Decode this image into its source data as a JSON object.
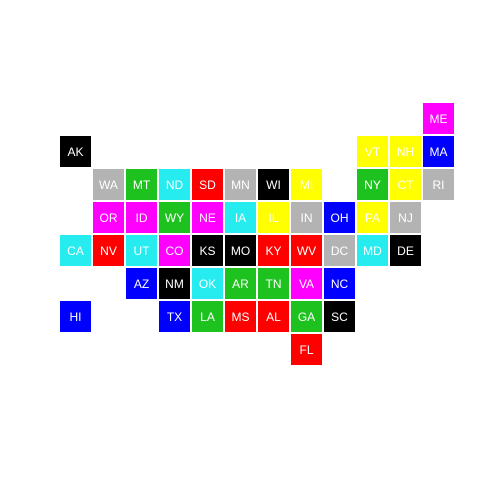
{
  "map": {
    "legend": [],
    "colors": {
      "black": "#000000",
      "gray": "#b3b3b3",
      "green": "#1ec21e",
      "cyan": "#26ecf0",
      "red": "#ff0000",
      "yellow": "#ffff00",
      "magenta": "#ff00ff",
      "blue": "#0000ff"
    },
    "states": [
      {
        "abbr": "ME",
        "row": 0,
        "col": 11,
        "color": "magenta"
      },
      {
        "abbr": "AK",
        "row": 1,
        "col": 0,
        "color": "black"
      },
      {
        "abbr": "VT",
        "row": 1,
        "col": 9,
        "color": "yellow"
      },
      {
        "abbr": "NH",
        "row": 1,
        "col": 10,
        "color": "yellow"
      },
      {
        "abbr": "MA",
        "row": 1,
        "col": 11,
        "color": "blue"
      },
      {
        "abbr": "WA",
        "row": 2,
        "col": 1,
        "color": "gray"
      },
      {
        "abbr": "MT",
        "row": 2,
        "col": 2,
        "color": "green"
      },
      {
        "abbr": "ND",
        "row": 2,
        "col": 3,
        "color": "cyan"
      },
      {
        "abbr": "SD",
        "row": 2,
        "col": 4,
        "color": "red"
      },
      {
        "abbr": "MN",
        "row": 2,
        "col": 5,
        "color": "gray"
      },
      {
        "abbr": "WI",
        "row": 2,
        "col": 6,
        "color": "black"
      },
      {
        "abbr": "MI",
        "row": 2,
        "col": 7,
        "color": "yellow"
      },
      {
        "abbr": "NY",
        "row": 2,
        "col": 9,
        "color": "green"
      },
      {
        "abbr": "CT",
        "row": 2,
        "col": 10,
        "color": "yellow"
      },
      {
        "abbr": "RI",
        "row": 2,
        "col": 11,
        "color": "gray"
      },
      {
        "abbr": "OR",
        "row": 3,
        "col": 1,
        "color": "magenta"
      },
      {
        "abbr": "ID",
        "row": 3,
        "col": 2,
        "color": "magenta"
      },
      {
        "abbr": "WY",
        "row": 3,
        "col": 3,
        "color": "green"
      },
      {
        "abbr": "NE",
        "row": 3,
        "col": 4,
        "color": "magenta"
      },
      {
        "abbr": "IA",
        "row": 3,
        "col": 5,
        "color": "cyan"
      },
      {
        "abbr": "IL",
        "row": 3,
        "col": 6,
        "color": "yellow"
      },
      {
        "abbr": "IN",
        "row": 3,
        "col": 7,
        "color": "gray"
      },
      {
        "abbr": "OH",
        "row": 3,
        "col": 8,
        "color": "blue"
      },
      {
        "abbr": "PA",
        "row": 3,
        "col": 9,
        "color": "yellow"
      },
      {
        "abbr": "NJ",
        "row": 3,
        "col": 10,
        "color": "gray"
      },
      {
        "abbr": "CA",
        "row": 4,
        "col": 0,
        "color": "cyan"
      },
      {
        "abbr": "NV",
        "row": 4,
        "col": 1,
        "color": "red"
      },
      {
        "abbr": "UT",
        "row": 4,
        "col": 2,
        "color": "cyan"
      },
      {
        "abbr": "CO",
        "row": 4,
        "col": 3,
        "color": "magenta"
      },
      {
        "abbr": "KS",
        "row": 4,
        "col": 4,
        "color": "black"
      },
      {
        "abbr": "MO",
        "row": 4,
        "col": 5,
        "color": "black"
      },
      {
        "abbr": "KY",
        "row": 4,
        "col": 6,
        "color": "red"
      },
      {
        "abbr": "WV",
        "row": 4,
        "col": 7,
        "color": "red"
      },
      {
        "abbr": "DC",
        "row": 4,
        "col": 8,
        "color": "gray"
      },
      {
        "abbr": "MD",
        "row": 4,
        "col": 9,
        "color": "cyan"
      },
      {
        "abbr": "DE",
        "row": 4,
        "col": 10,
        "color": "black"
      },
      {
        "abbr": "AZ",
        "row": 5,
        "col": 2,
        "color": "blue"
      },
      {
        "abbr": "NM",
        "row": 5,
        "col": 3,
        "color": "black"
      },
      {
        "abbr": "OK",
        "row": 5,
        "col": 4,
        "color": "cyan"
      },
      {
        "abbr": "AR",
        "row": 5,
        "col": 5,
        "color": "green"
      },
      {
        "abbr": "TN",
        "row": 5,
        "col": 6,
        "color": "green"
      },
      {
        "abbr": "VA",
        "row": 5,
        "col": 7,
        "color": "magenta"
      },
      {
        "abbr": "NC",
        "row": 5,
        "col": 8,
        "color": "blue"
      },
      {
        "abbr": "HI",
        "row": 6,
        "col": 0,
        "color": "blue"
      },
      {
        "abbr": "TX",
        "row": 6,
        "col": 3,
        "color": "blue"
      },
      {
        "abbr": "LA",
        "row": 6,
        "col": 4,
        "color": "green"
      },
      {
        "abbr": "MS",
        "row": 6,
        "col": 5,
        "color": "red"
      },
      {
        "abbr": "AL",
        "row": 6,
        "col": 6,
        "color": "red"
      },
      {
        "abbr": "GA",
        "row": 6,
        "col": 7,
        "color": "green"
      },
      {
        "abbr": "SC",
        "row": 6,
        "col": 8,
        "color": "black"
      },
      {
        "abbr": "FL",
        "row": 7,
        "col": 7,
        "color": "red"
      }
    ]
  }
}
